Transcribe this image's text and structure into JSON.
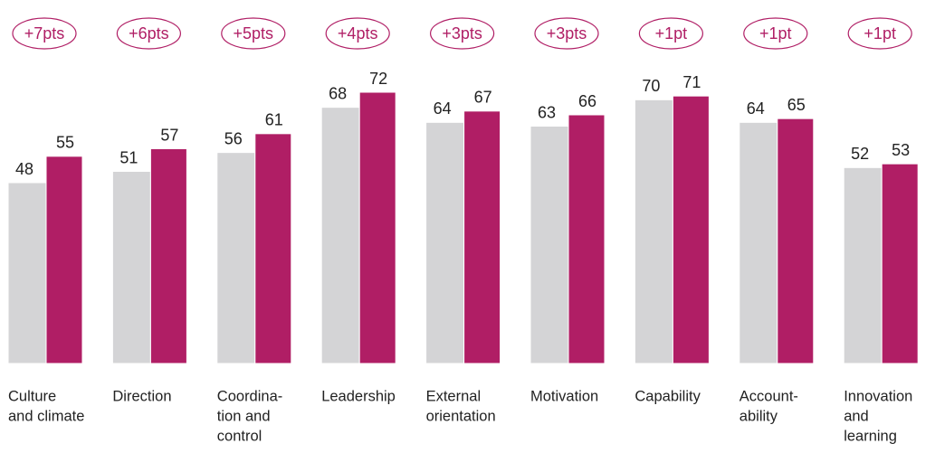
{
  "chart_data": {
    "type": "bar",
    "categories": [
      [
        "Culture",
        "and climate"
      ],
      [
        "Direction"
      ],
      [
        "Coordina-",
        "tion and",
        "control"
      ],
      [
        "Leadership"
      ],
      [
        "External",
        "orientation"
      ],
      [
        "Motivation"
      ],
      [
        "Capability"
      ],
      [
        "Account-",
        "ability"
      ],
      [
        "Innovation",
        "and",
        "learning"
      ]
    ],
    "annotations": [
      "+7pts",
      "+6pts",
      "+5pts",
      "+4pts",
      "+3pts",
      "+3pts",
      "+1pt",
      "+1pt",
      "+1pt"
    ],
    "series": [
      {
        "color": "#d4d4d6",
        "values": [
          48,
          51,
          56,
          68,
          64,
          63,
          70,
          64,
          52
        ]
      },
      {
        "color": "#b01e65",
        "values": [
          55,
          57,
          61,
          72,
          67,
          66,
          71,
          65,
          53
        ]
      }
    ],
    "ylim": [
      0,
      90
    ]
  }
}
